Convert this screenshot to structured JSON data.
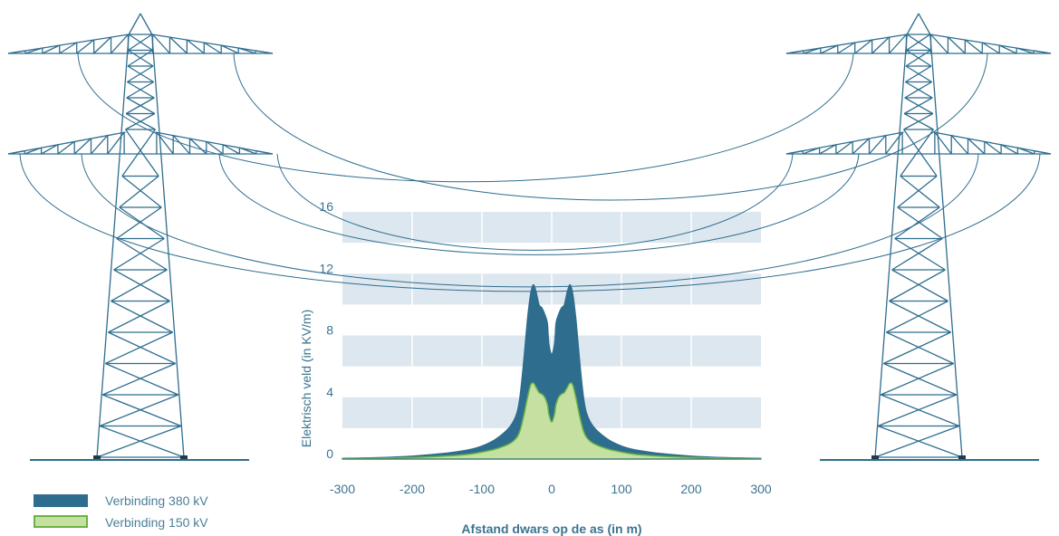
{
  "chart_data": {
    "type": "area",
    "title": "",
    "xlabel": "Afstand dwars op de as (in m)",
    "ylabel": "Elektrisch veld (in KV/m)",
    "xlim": [
      -300,
      300
    ],
    "ylim": [
      0,
      16
    ],
    "x_ticks": [
      "-300",
      "-200",
      "-100",
      "0",
      "100",
      "200",
      "300"
    ],
    "y_ticks": [
      "0",
      "4",
      "8",
      "12",
      "16"
    ],
    "grid": true,
    "legend_position": "bottom-left",
    "x": [
      -300,
      -250,
      -200,
      -150,
      -120,
      -100,
      -80,
      -60,
      -50,
      -45,
      -40,
      -35,
      -30,
      -26,
      -22,
      -18,
      -14,
      -10,
      -6,
      -4,
      0,
      4,
      6,
      10,
      14,
      18,
      22,
      26,
      30,
      35,
      40,
      45,
      50,
      60,
      80,
      100,
      120,
      150,
      200,
      250,
      300
    ],
    "series": [
      {
        "name": "Verbinding 380 kV",
        "color": "#2e6d8e",
        "values": [
          0.05,
          0.1,
          0.2,
          0.4,
          0.6,
          0.85,
          1.3,
          2.1,
          3.0,
          4.3,
          6.5,
          9.0,
          10.8,
          11.3,
          10.8,
          10.0,
          9.8,
          9.4,
          8.8,
          7.5,
          6.8,
          7.5,
          8.8,
          9.4,
          9.8,
          10.0,
          10.8,
          11.3,
          10.8,
          9.0,
          6.5,
          4.3,
          3.0,
          2.1,
          1.3,
          0.85,
          0.6,
          0.4,
          0.2,
          0.1,
          0.05
        ]
      },
      {
        "name": "Verbinding 150 kV",
        "color": "#a9d18e",
        "values": [
          0.02,
          0.05,
          0.1,
          0.2,
          0.3,
          0.45,
          0.65,
          1.0,
          1.4,
          1.9,
          2.8,
          3.9,
          4.8,
          4.9,
          4.6,
          4.3,
          4.2,
          4.0,
          3.5,
          2.9,
          2.4,
          2.9,
          3.5,
          4.0,
          4.2,
          4.3,
          4.6,
          4.9,
          4.8,
          3.9,
          2.8,
          1.9,
          1.4,
          1.0,
          0.65,
          0.45,
          0.3,
          0.2,
          0.1,
          0.05,
          0.02
        ]
      }
    ]
  },
  "colors": {
    "tower": "#2e6d8e",
    "band": "#dde7ef",
    "gridline": "#ffffff",
    "text": "#3a7491",
    "fill_380": "#2e6d8e",
    "fill_150": "#c5e0a0",
    "stroke_150": "#6ab342"
  }
}
